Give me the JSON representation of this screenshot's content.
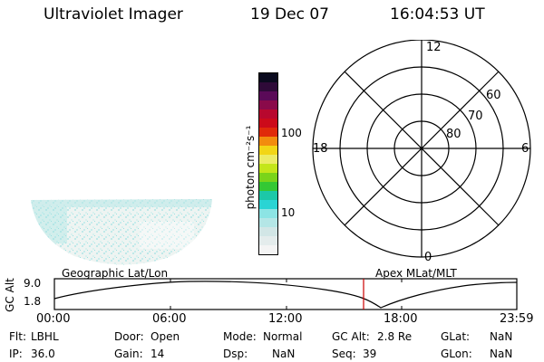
{
  "header": {
    "title": "Ultraviolet Imager",
    "date": "19 Dec 07",
    "time": "16:04:53 UT"
  },
  "colorbar": {
    "unit_label": "photon cm⁻²s⁻¹",
    "ticks": [
      "100",
      "10"
    ],
    "colors": [
      "#f4f4f4",
      "#e4ecec",
      "#d2e6e6",
      "#b4e6e6",
      "#8ce4e4",
      "#2ad4d4",
      "#1cc8a8",
      "#34c834",
      "#7ad41a",
      "#c4e61a",
      "#ecec66",
      "#f2d616",
      "#f28c0e",
      "#e02a0a",
      "#cc0a1a",
      "#b8082e",
      "#8a0a4a",
      "#5a0a58",
      "#2e0a38",
      "#0a0a1e"
    ]
  },
  "polar": {
    "mlt_labels": {
      "top": "12",
      "left": "18",
      "right": "6",
      "bottom": "0"
    },
    "lat_labels": [
      "60",
      "70",
      "80"
    ]
  },
  "map": {
    "geo_label": "Geographic Lat/Lon",
    "apex_label": "Apex MLat/MLT"
  },
  "orbit_plot": {
    "ylabel": "GC Alt",
    "yticks": [
      "9.0",
      "1.8"
    ],
    "xticks": [
      "00:00",
      "06:00",
      "12:00",
      "18:00",
      "23:59"
    ],
    "current_time_marker": "16:04:53"
  },
  "status": {
    "row1": [
      {
        "key": "Flt:",
        "value": "LBHL"
      },
      {
        "key": "Door:",
        "value": "Open"
      },
      {
        "key": "Mode:",
        "value": "Normal"
      },
      {
        "key": "GC Alt:",
        "value": "2.8 Re"
      },
      {
        "key": "GLat:",
        "value": "NaN"
      }
    ],
    "row2": [
      {
        "key": "IP:",
        "value": "36.0"
      },
      {
        "key": "Gain:",
        "value": "14"
      },
      {
        "key": "Dsp:",
        "value": "NaN"
      },
      {
        "key": "Seq:",
        "value": "39"
      },
      {
        "key": "GLon:",
        "value": "NaN"
      }
    ]
  }
}
